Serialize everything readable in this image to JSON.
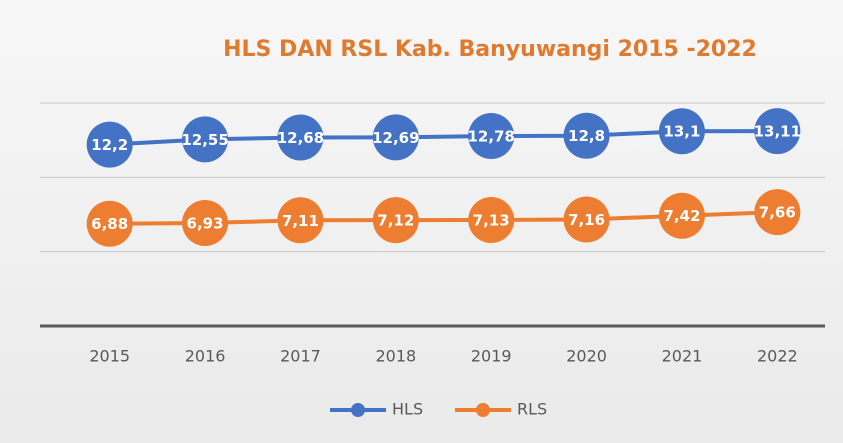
{
  "chart_data": {
    "type": "line",
    "title": "HLS DAN RSL Kab. Banyuwangi 2015 -2022",
    "categories": [
      "2015",
      "2016",
      "2017",
      "2018",
      "2019",
      "2020",
      "2021",
      "2022"
    ],
    "series": [
      {
        "name": "HLS",
        "color": "#4472c4",
        "values": [
          12.2,
          12.55,
          12.68,
          12.69,
          12.78,
          12.8,
          13.1,
          13.11
        ],
        "value_labels": [
          "12,2",
          "12,55",
          "12,68",
          "12,69",
          "12,78",
          "12,8",
          "13,1",
          "13,11"
        ]
      },
      {
        "name": "RLS",
        "color": "#ed7d31",
        "values": [
          6.88,
          6.93,
          7.11,
          7.12,
          7.13,
          7.16,
          7.42,
          7.66
        ],
        "value_labels": [
          "6,88",
          "6,93",
          "7,11",
          "7,12",
          "7,13",
          "7,16",
          "7,42",
          "7,66"
        ]
      }
    ],
    "ylim": [
      0,
      15
    ],
    "yticks": [
      0,
      5,
      10,
      15
    ],
    "grid": true,
    "legend": "bottom"
  }
}
